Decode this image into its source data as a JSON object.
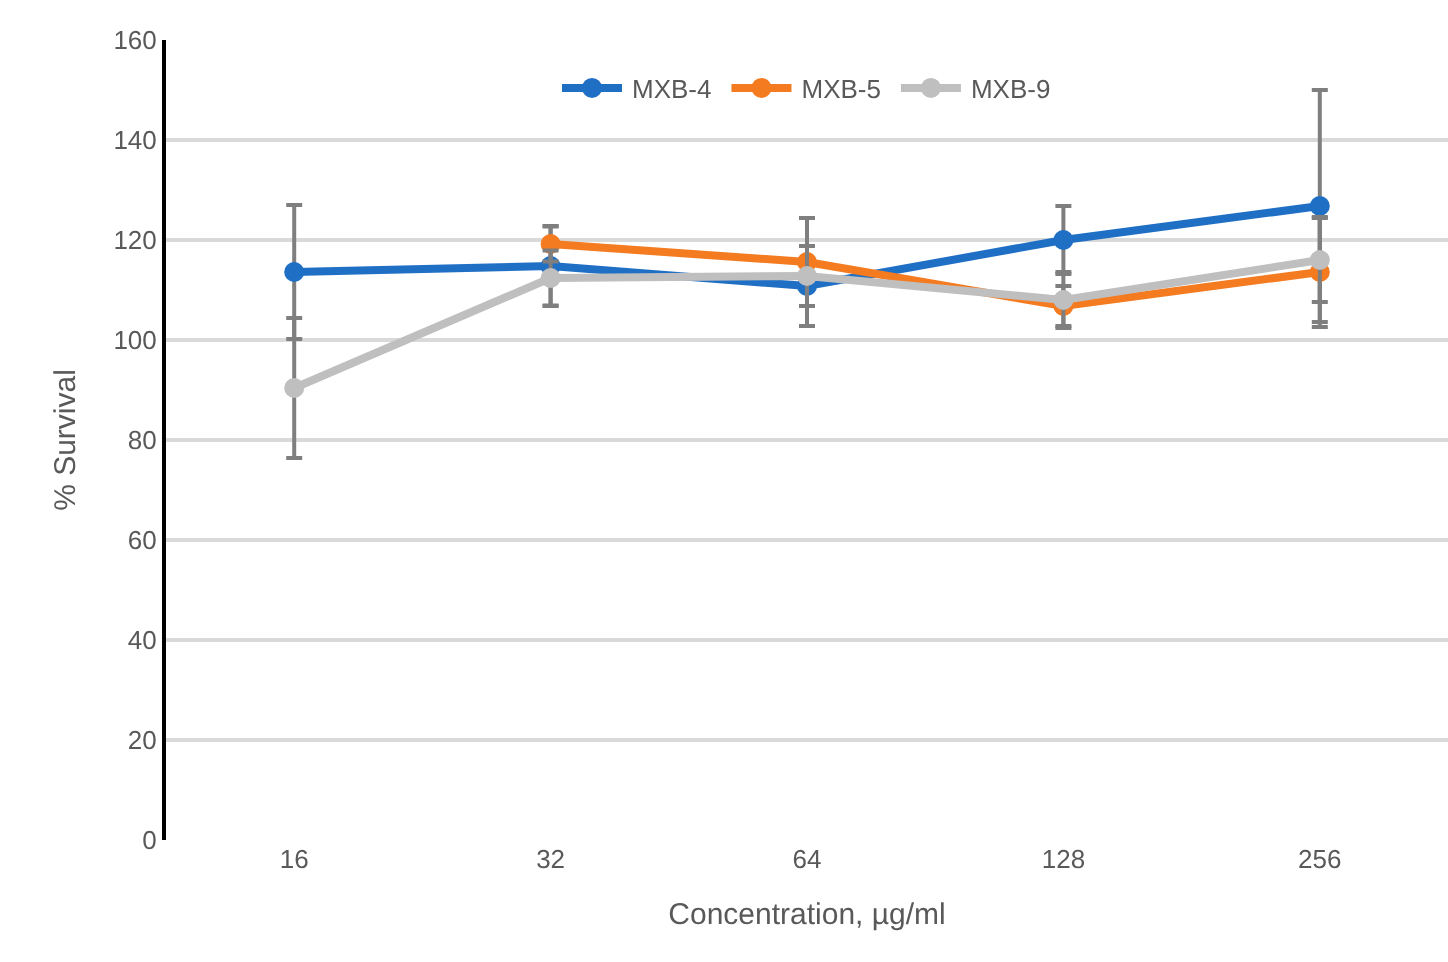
{
  "chart_data": {
    "type": "line",
    "xlabel": "Concentration, µg/ml",
    "ylabel": "% Survival",
    "categories": [
      "16",
      "32",
      "64",
      "128",
      "256"
    ],
    "series": [
      {
        "name": "MXB-4",
        "color": "#1f6fc5",
        "values": [
          113.6,
          114.8,
          110.8,
          120,
          126.8
        ],
        "errors": [
          13.4,
          8,
          8,
          6.8,
          23.2
        ]
      },
      {
        "name": "MXB-5",
        "color": "#f47b20",
        "values": [
          null,
          119.2,
          115.6,
          106.8,
          113.6
        ],
        "errors": [
          null,
          3.5,
          8.8,
          4,
          11
        ]
      },
      {
        "name": "MXB-9",
        "color": "#bfbfbf",
        "values": [
          90.4,
          112.4,
          112.8,
          108,
          116
        ],
        "errors": [
          14,
          5.5,
          6,
          5.6,
          8.4
        ]
      }
    ],
    "ylim": [
      0,
      160
    ],
    "yticks": [
      0,
      20,
      40,
      60,
      80,
      100,
      120,
      140,
      160
    ],
    "grid": "y",
    "legend": "top",
    "marker": "circle",
    "line_style": "solid"
  }
}
